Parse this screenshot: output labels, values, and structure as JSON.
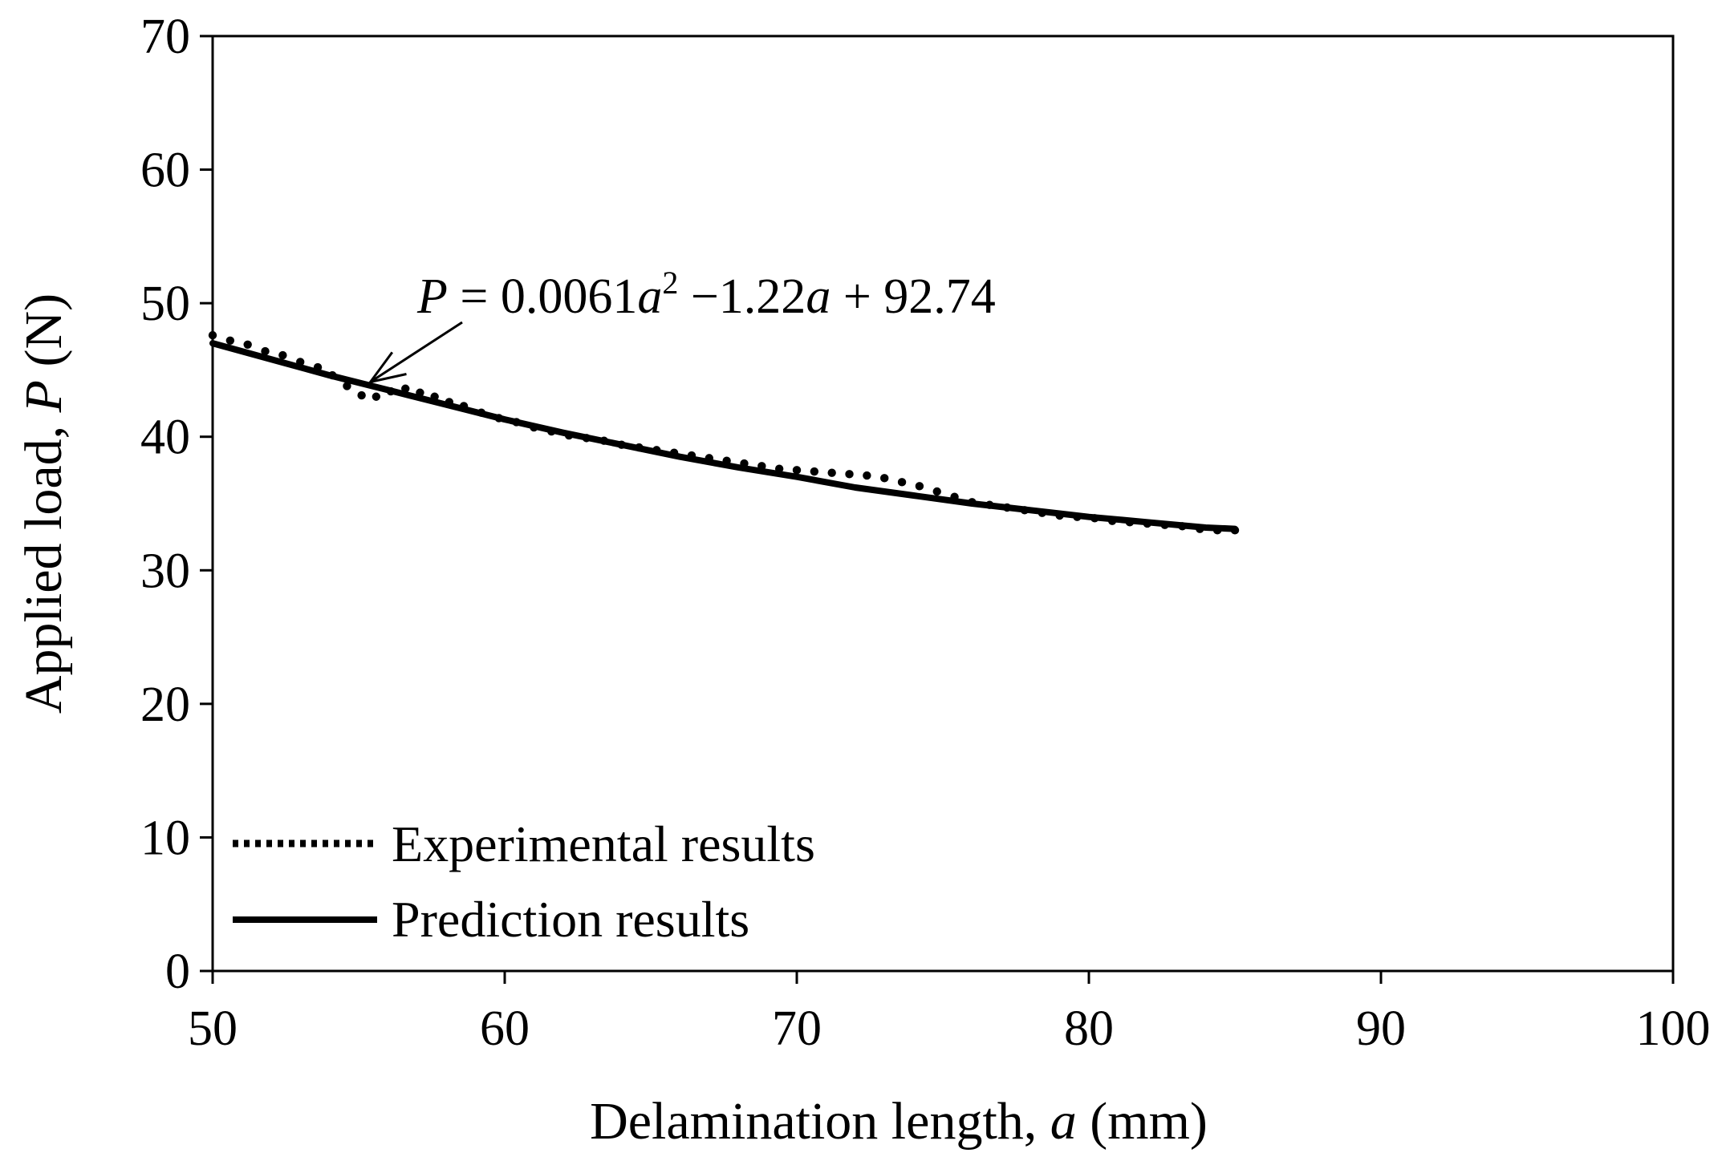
{
  "chart_data": {
    "type": "line",
    "title": "",
    "x_label_prefix": "Delamination length, ",
    "x_label_var": "a",
    "x_label_unit": " (mm)",
    "y_label_prefix": "Applied load, ",
    "y_label_var": "P",
    "y_label_unit": " (N)",
    "xlim": [
      50,
      100
    ],
    "ylim": [
      0,
      70
    ],
    "x_ticks": [
      50,
      60,
      70,
      80,
      90,
      100
    ],
    "y_ticks": [
      0,
      10,
      20,
      30,
      40,
      50,
      60,
      70
    ],
    "grid": false,
    "legend_position": "bottom-left",
    "series": [
      {
        "name": "Experimental results",
        "style": "dotted",
        "x": [
          50.0,
          50.6,
          51.2,
          51.8,
          52.4,
          53.0,
          53.6,
          54.1,
          54.6,
          55.1,
          55.6,
          56.1,
          56.6,
          57.1,
          57.6,
          58.1,
          58.6,
          59.2,
          59.8,
          60.4,
          61.0,
          61.6,
          62.2,
          62.8,
          63.4,
          64.0,
          64.6,
          65.2,
          65.8,
          66.4,
          67.0,
          67.6,
          68.2,
          68.8,
          69.4,
          70.0,
          70.6,
          71.2,
          71.8,
          72.4,
          73.0,
          73.6,
          74.2,
          74.8,
          75.4,
          76.0,
          76.6,
          77.2,
          77.8,
          78.4,
          79.0,
          79.6,
          80.2,
          80.8,
          81.4,
          82.0,
          82.6,
          83.2,
          83.8,
          84.4,
          85.0
        ],
        "values": [
          47.6,
          47.2,
          46.9,
          46.4,
          46.1,
          45.6,
          45.2,
          44.6,
          43.8,
          43.1,
          43.0,
          43.4,
          43.6,
          43.3,
          43.0,
          42.6,
          42.3,
          41.8,
          41.4,
          41.1,
          40.7,
          40.4,
          40.1,
          39.9,
          39.7,
          39.4,
          39.2,
          39.0,
          38.8,
          38.6,
          38.4,
          38.2,
          38.0,
          37.8,
          37.6,
          37.5,
          37.4,
          37.3,
          37.2,
          37.1,
          36.9,
          36.6,
          36.3,
          35.9,
          35.5,
          35.1,
          34.9,
          34.7,
          34.5,
          34.3,
          34.1,
          34.0,
          33.9,
          33.7,
          33.6,
          33.5,
          33.4,
          33.3,
          33.1,
          33.0,
          33.0
        ]
      },
      {
        "name": "Prediction results",
        "style": "solid",
        "x": [
          50,
          52,
          54,
          56,
          58,
          60,
          62,
          64,
          66,
          68,
          70,
          72,
          74,
          76,
          78,
          80,
          82,
          84,
          85
        ],
        "values": [
          47.0,
          45.8,
          44.6,
          43.5,
          42.4,
          41.3,
          40.3,
          39.4,
          38.5,
          37.7,
          37.0,
          36.2,
          35.6,
          35.0,
          34.5,
          34.0,
          33.6,
          33.2,
          33.1
        ]
      }
    ],
    "annotation": {
      "lhs": "P",
      "eq": " = 0.0061",
      "var1": "a",
      "sup": "2",
      "mid": " −1.22",
      "var2": "a",
      "rhs": " + 92.74",
      "arrow_target": {
        "x": 55.4,
        "y": 44.1
      }
    }
  }
}
